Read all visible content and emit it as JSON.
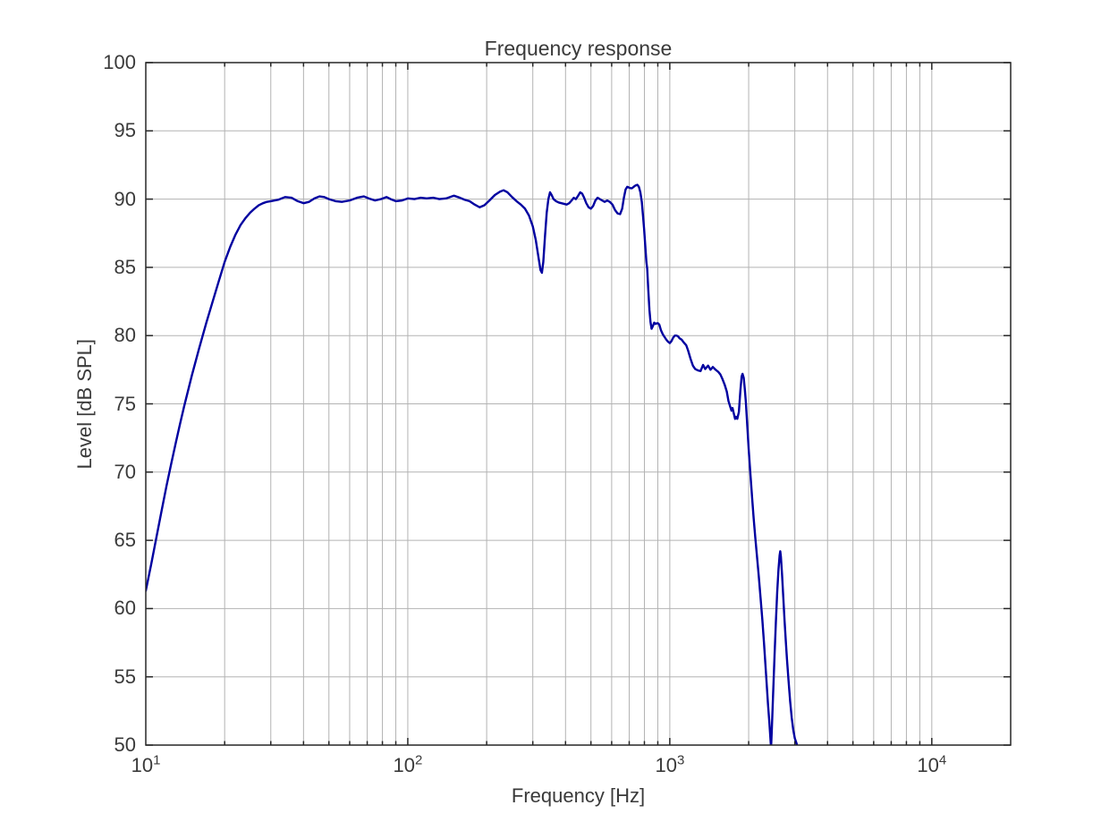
{
  "figure": {
    "background": "#ffffff",
    "text_color": "#3a3a3a",
    "axis_color": "#262626",
    "grid_color": "#b3b3b3"
  },
  "chart_data": {
    "type": "line",
    "title": "Frequency response",
    "xlabel": "Frequency [Hz]",
    "ylabel": "Level [dB SPL]",
    "x_scale": "log",
    "y_scale": "linear",
    "xlim": [
      10,
      20000
    ],
    "ylim": [
      50,
      100
    ],
    "x_major_ticks": [
      10,
      100,
      1000,
      10000
    ],
    "x_tick_base": "10",
    "x_tick_exponents": [
      "1",
      "2",
      "3",
      "4"
    ],
    "x_minor_multiples": [
      2,
      3,
      4,
      5,
      6,
      7,
      8,
      9
    ],
    "y_ticks": [
      50,
      55,
      60,
      65,
      70,
      75,
      80,
      85,
      90,
      95,
      100
    ],
    "grid": true,
    "legend": "none",
    "line_color": "#0000A0",
    "line_width": 2.4,
    "series": [
      {
        "name": "frequency-response",
        "points": [
          [
            10,
            61.3
          ],
          [
            10.5,
            63.3
          ],
          [
            11,
            65.3
          ],
          [
            11.5,
            67.2
          ],
          [
            12,
            69
          ],
          [
            12.5,
            70.6
          ],
          [
            13,
            72.1
          ],
          [
            13.5,
            73.5
          ],
          [
            14,
            74.8
          ],
          [
            15,
            77.1
          ],
          [
            16,
            79.1
          ],
          [
            17,
            80.9
          ],
          [
            18,
            82.5
          ],
          [
            19,
            84
          ],
          [
            20,
            85.4
          ],
          [
            21,
            86.5
          ],
          [
            22,
            87.4
          ],
          [
            23,
            88.1
          ],
          [
            24,
            88.6
          ],
          [
            25,
            89
          ],
          [
            26,
            89.3
          ],
          [
            27,
            89.55
          ],
          [
            28,
            89.7
          ],
          [
            29,
            89.8
          ],
          [
            30,
            89.85
          ],
          [
            32,
            89.95
          ],
          [
            34,
            90.15
          ],
          [
            36,
            90.1
          ],
          [
            38,
            89.85
          ],
          [
            40,
            89.7
          ],
          [
            42,
            89.8
          ],
          [
            44,
            90.05
          ],
          [
            46,
            90.2
          ],
          [
            48,
            90.15
          ],
          [
            50,
            90
          ],
          [
            53,
            89.85
          ],
          [
            56,
            89.8
          ],
          [
            60,
            89.9
          ],
          [
            64,
            90.1
          ],
          [
            68,
            90.2
          ],
          [
            71,
            90.05
          ],
          [
            75,
            89.9
          ],
          [
            79,
            90
          ],
          [
            83,
            90.15
          ],
          [
            86,
            90
          ],
          [
            90,
            89.85
          ],
          [
            95,
            89.9
          ],
          [
            100,
            90.05
          ],
          [
            106,
            90
          ],
          [
            112,
            90.1
          ],
          [
            118,
            90.05
          ],
          [
            125,
            90.1
          ],
          [
            132,
            90
          ],
          [
            140,
            90.05
          ],
          [
            150,
            90.25
          ],
          [
            158,
            90.1
          ],
          [
            165,
            89.95
          ],
          [
            172,
            89.85
          ],
          [
            180,
            89.6
          ],
          [
            188,
            89.4
          ],
          [
            196,
            89.55
          ],
          [
            205,
            89.9
          ],
          [
            215,
            90.3
          ],
          [
            225,
            90.55
          ],
          [
            232,
            90.65
          ],
          [
            240,
            90.5
          ],
          [
            250,
            90.15
          ],
          [
            260,
            89.85
          ],
          [
            270,
            89.6
          ],
          [
            280,
            89.3
          ],
          [
            290,
            88.8
          ],
          [
            300,
            88
          ],
          [
            308,
            87
          ],
          [
            315,
            85.8
          ],
          [
            321,
            84.8
          ],
          [
            325,
            84.6
          ],
          [
            329,
            85.4
          ],
          [
            334,
            87.3
          ],
          [
            339,
            89
          ],
          [
            344,
            90
          ],
          [
            349,
            90.5
          ],
          [
            354,
            90.3
          ],
          [
            360,
            90
          ],
          [
            368,
            89.85
          ],
          [
            377,
            89.75
          ],
          [
            386,
            89.7
          ],
          [
            395,
            89.65
          ],
          [
            404,
            89.6
          ],
          [
            413,
            89.7
          ],
          [
            422,
            89.9
          ],
          [
            430,
            90.1
          ],
          [
            438,
            90
          ],
          [
            447,
            90.25
          ],
          [
            455,
            90.5
          ],
          [
            463,
            90.4
          ],
          [
            471,
            90.1
          ],
          [
            480,
            89.7
          ],
          [
            490,
            89.4
          ],
          [
            500,
            89.3
          ],
          [
            510,
            89.5
          ],
          [
            520,
            89.9
          ],
          [
            530,
            90.1
          ],
          [
            541,
            90
          ],
          [
            552,
            89.9
          ],
          [
            564,
            89.8
          ],
          [
            577,
            89.9
          ],
          [
            590,
            89.8
          ],
          [
            604,
            89.6
          ],
          [
            618,
            89.2
          ],
          [
            632,
            88.95
          ],
          [
            646,
            88.9
          ],
          [
            658,
            89.3
          ],
          [
            668,
            90.1
          ],
          [
            678,
            90.7
          ],
          [
            688,
            90.9
          ],
          [
            698,
            90.85
          ],
          [
            708,
            90.8
          ],
          [
            718,
            90.8
          ],
          [
            728,
            90.9
          ],
          [
            740,
            91
          ],
          [
            752,
            91.05
          ],
          [
            762,
            90.9
          ],
          [
            772,
            90.5
          ],
          [
            782,
            89.8
          ],
          [
            790,
            88.8
          ],
          [
            798,
            87.8
          ],
          [
            806,
            86.6
          ],
          [
            814,
            85.4
          ],
          [
            820,
            84.9
          ],
          [
            828,
            83.3
          ],
          [
            836,
            81.9
          ],
          [
            844,
            81
          ],
          [
            852,
            80.5
          ],
          [
            862,
            80.7
          ],
          [
            872,
            80.95
          ],
          [
            882,
            80.85
          ],
          [
            892,
            80.9
          ],
          [
            902,
            80.9
          ],
          [
            912,
            80.8
          ],
          [
            925,
            80.4
          ],
          [
            940,
            80.1
          ],
          [
            955,
            79.9
          ],
          [
            970,
            79.7
          ],
          [
            985,
            79.55
          ],
          [
            1000,
            79.45
          ],
          [
            1015,
            79.6
          ],
          [
            1030,
            79.85
          ],
          [
            1045,
            80
          ],
          [
            1060,
            80
          ],
          [
            1075,
            79.95
          ],
          [
            1090,
            79.8
          ],
          [
            1110,
            79.7
          ],
          [
            1130,
            79.5
          ],
          [
            1155,
            79.3
          ],
          [
            1175,
            78.9
          ],
          [
            1200,
            78.3
          ],
          [
            1225,
            77.8
          ],
          [
            1250,
            77.55
          ],
          [
            1280,
            77.45
          ],
          [
            1310,
            77.4
          ],
          [
            1340,
            77.85
          ],
          [
            1365,
            77.55
          ],
          [
            1400,
            77.8
          ],
          [
            1430,
            77.5
          ],
          [
            1460,
            77.7
          ],
          [
            1495,
            77.5
          ],
          [
            1530,
            77.35
          ],
          [
            1560,
            77.15
          ],
          [
            1590,
            76.8
          ],
          [
            1620,
            76.4
          ],
          [
            1650,
            75.9
          ],
          [
            1675,
            75.2
          ],
          [
            1700,
            74.8
          ],
          [
            1720,
            74.5
          ],
          [
            1735,
            74.7
          ],
          [
            1750,
            74.4
          ],
          [
            1775,
            73.9
          ],
          [
            1790,
            74.05
          ],
          [
            1810,
            73.9
          ],
          [
            1835,
            74.4
          ],
          [
            1860,
            76
          ],
          [
            1880,
            77
          ],
          [
            1895,
            77.2
          ],
          [
            1915,
            76.9
          ],
          [
            1935,
            76
          ],
          [
            1950,
            75.2
          ],
          [
            1970,
            73.8
          ],
          [
            2000,
            71.7
          ],
          [
            2030,
            69.9
          ],
          [
            2060,
            68.2
          ],
          [
            2090,
            66.6
          ],
          [
            2120,
            65.2
          ],
          [
            2150,
            63.9
          ],
          [
            2185,
            62.4
          ],
          [
            2220,
            60.8
          ],
          [
            2255,
            59.2
          ],
          [
            2290,
            57.4
          ],
          [
            2330,
            55.2
          ],
          [
            2370,
            53
          ],
          [
            2400,
            51.6
          ],
          [
            2425,
            50.3
          ],
          [
            2435,
            49.8
          ],
          [
            2450,
            51
          ],
          [
            2480,
            53.8
          ],
          [
            2510,
            56.5
          ],
          [
            2540,
            59
          ],
          [
            2570,
            61.2
          ],
          [
            2600,
            62.9
          ],
          [
            2625,
            63.9
          ],
          [
            2640,
            64.2
          ],
          [
            2655,
            63.8
          ],
          [
            2680,
            62.6
          ],
          [
            2710,
            60.9
          ],
          [
            2740,
            59.2
          ],
          [
            2770,
            57.7
          ],
          [
            2800,
            56.3
          ],
          [
            2840,
            54.7
          ],
          [
            2880,
            53.2
          ],
          [
            2920,
            52
          ],
          [
            2960,
            51.1
          ],
          [
            3000,
            50.5
          ],
          [
            3050,
            50.1
          ],
          [
            3090,
            49.6
          ]
        ]
      }
    ]
  }
}
